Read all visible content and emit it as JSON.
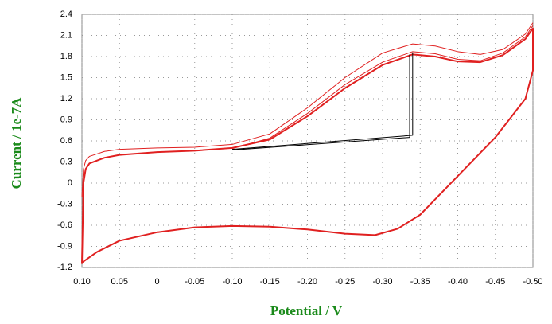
{
  "chart_data": {
    "type": "line",
    "x_label": "Potential / V",
    "y_label": "Current / 1e-7A",
    "xlim": [
      0.1,
      -0.5
    ],
    "ylim": [
      -1.2,
      2.4
    ],
    "xticks": [
      {
        "value": 0.1,
        "label": "0.10"
      },
      0.05,
      0,
      -0.05,
      {
        "value": -0.1,
        "label": "-0.10"
      },
      -0.15,
      {
        "value": -0.2,
        "label": "-0.20"
      },
      -0.25,
      {
        "value": -0.3,
        "label": "-0.30"
      },
      -0.35,
      {
        "value": -0.4,
        "label": "-0.40"
      },
      -0.45,
      {
        "value": -0.5,
        "label": "-0.50"
      }
    ],
    "yticks": [
      2.4,
      2.1,
      1.8,
      1.5,
      1.2,
      0.9,
      0.6,
      0.3,
      0,
      -0.3,
      -0.6,
      -0.9,
      -1.2
    ],
    "grid": true,
    "series": [
      {
        "color": "#e02020",
        "width": 2,
        "x": [
          0.1,
          0.099,
          0.098,
          0.095,
          0.09,
          0.07,
          0.05,
          0.0,
          -0.05,
          -0.1,
          -0.15,
          -0.2,
          -0.25,
          -0.3,
          -0.34,
          -0.37,
          -0.4,
          -0.43,
          -0.46,
          -0.49,
          -0.5,
          -0.5,
          -0.49,
          -0.45,
          -0.4,
          -0.35,
          -0.32,
          -0.29,
          -0.25,
          -0.2,
          -0.15,
          -0.1,
          -0.05,
          0.0,
          0.05,
          0.08,
          0.1
        ],
        "values": [
          -1.15,
          -0.6,
          0.0,
          0.2,
          0.28,
          0.36,
          0.4,
          0.44,
          0.46,
          0.5,
          0.62,
          0.95,
          1.35,
          1.68,
          1.83,
          1.8,
          1.73,
          1.72,
          1.82,
          2.05,
          2.2,
          1.6,
          1.2,
          0.65,
          0.1,
          -0.45,
          -0.65,
          -0.74,
          -0.72,
          -0.66,
          -0.62,
          -0.61,
          -0.63,
          -0.7,
          -0.82,
          -0.98,
          -1.13
        ]
      },
      {
        "color": "#e02020",
        "width": 1,
        "x": [
          0.1,
          0.098,
          0.095,
          0.09,
          0.07,
          0.05,
          0.0,
          -0.05,
          -0.1,
          -0.15,
          -0.2,
          -0.25,
          -0.3,
          -0.34,
          -0.37,
          -0.4,
          -0.43,
          -0.46,
          -0.49,
          -0.5
        ],
        "values": [
          -0.2,
          0.2,
          0.32,
          0.38,
          0.45,
          0.48,
          0.5,
          0.51,
          0.55,
          0.7,
          1.07,
          1.5,
          1.85,
          1.98,
          1.95,
          1.87,
          1.83,
          1.9,
          2.12,
          2.28
        ]
      },
      {
        "color": "#e02020",
        "width": 1,
        "x": [
          -0.1,
          -0.15,
          -0.2,
          -0.25,
          -0.3,
          -0.34,
          -0.37,
          -0.4,
          -0.43,
          -0.46,
          -0.49,
          -0.5
        ],
        "values": [
          0.49,
          0.64,
          0.99,
          1.4,
          1.72,
          1.87,
          1.84,
          1.76,
          1.74,
          1.85,
          2.08,
          2.24
        ]
      },
      {
        "color": "#000000",
        "width": 1,
        "x": [
          -0.1,
          -0.34,
          -0.34
        ],
        "values": [
          0.48,
          0.68,
          1.86
        ]
      },
      {
        "color": "#000000",
        "width": 1,
        "x": [
          -0.1,
          -0.336,
          -0.336
        ],
        "values": [
          0.47,
          0.65,
          1.83
        ]
      }
    ]
  }
}
